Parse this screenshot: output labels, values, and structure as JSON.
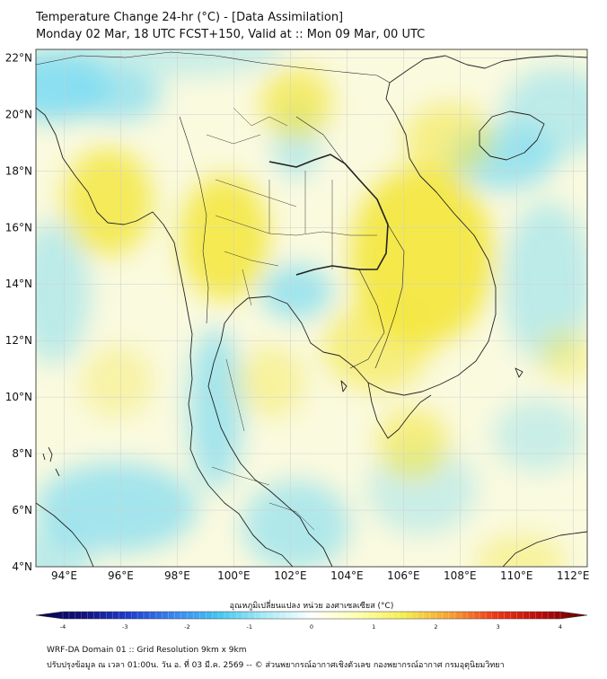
{
  "title": {
    "line1": "Temperature Change 24-hr (°C) - [Data Assimilation]",
    "line2": "Monday 02 Mar, 18 UTC FCST+150, Valid at :: Mon 09 Mar, 00 UTC"
  },
  "map": {
    "lat_labels": [
      "22°N",
      "20°N",
      "18°N",
      "16°N",
      "14°N",
      "12°N",
      "10°N",
      "8°N",
      "6°N",
      "4°N"
    ],
    "lon_labels": [
      "94°E",
      "96°E",
      "98°E",
      "100°E",
      "102°E",
      "104°E",
      "106°E",
      "108°E",
      "110°E",
      "112°E"
    ],
    "lat_range": [
      4,
      22.3
    ],
    "lon_range": [
      93,
      112.5
    ],
    "colors": {
      "warm": "#f3e63a",
      "neutral": "#fafadf",
      "cool": "#7fdcf2",
      "coast": "#222222",
      "grid": "#cfcfcf"
    }
  },
  "colorbar": {
    "title": "อุณหภูมิเปลี่ยนแปลง หน่วย องศาเซลเซียส (°C)",
    "ticks": [
      "-4",
      "-3",
      "-2",
      "-1",
      "0",
      "1",
      "2",
      "3",
      "4"
    ],
    "range": [
      -4,
      4
    ],
    "stops": [
      "#060450",
      "#10107a",
      "#1e3ccc",
      "#3a86f0",
      "#45c6f2",
      "#a8ebf5",
      "#ffffff",
      "#ffffb0",
      "#f5ee50",
      "#f7a232",
      "#ee3818",
      "#b80a0a",
      "#5c0000"
    ]
  },
  "footer": {
    "line1": "WRF-DA Domain 01 :: Grid Resolution 9km x 9km",
    "line2": "ปรับปรุงข้อมูล ณ เวลา 01:00น. วัน อ. ที่ 03 มี.ค. 2569 -- © ส่วนพยากรณ์อากาศเชิงตัวเลข กองพยากรณ์อากาศ กรมอุตุนิยมวิทยา"
  }
}
